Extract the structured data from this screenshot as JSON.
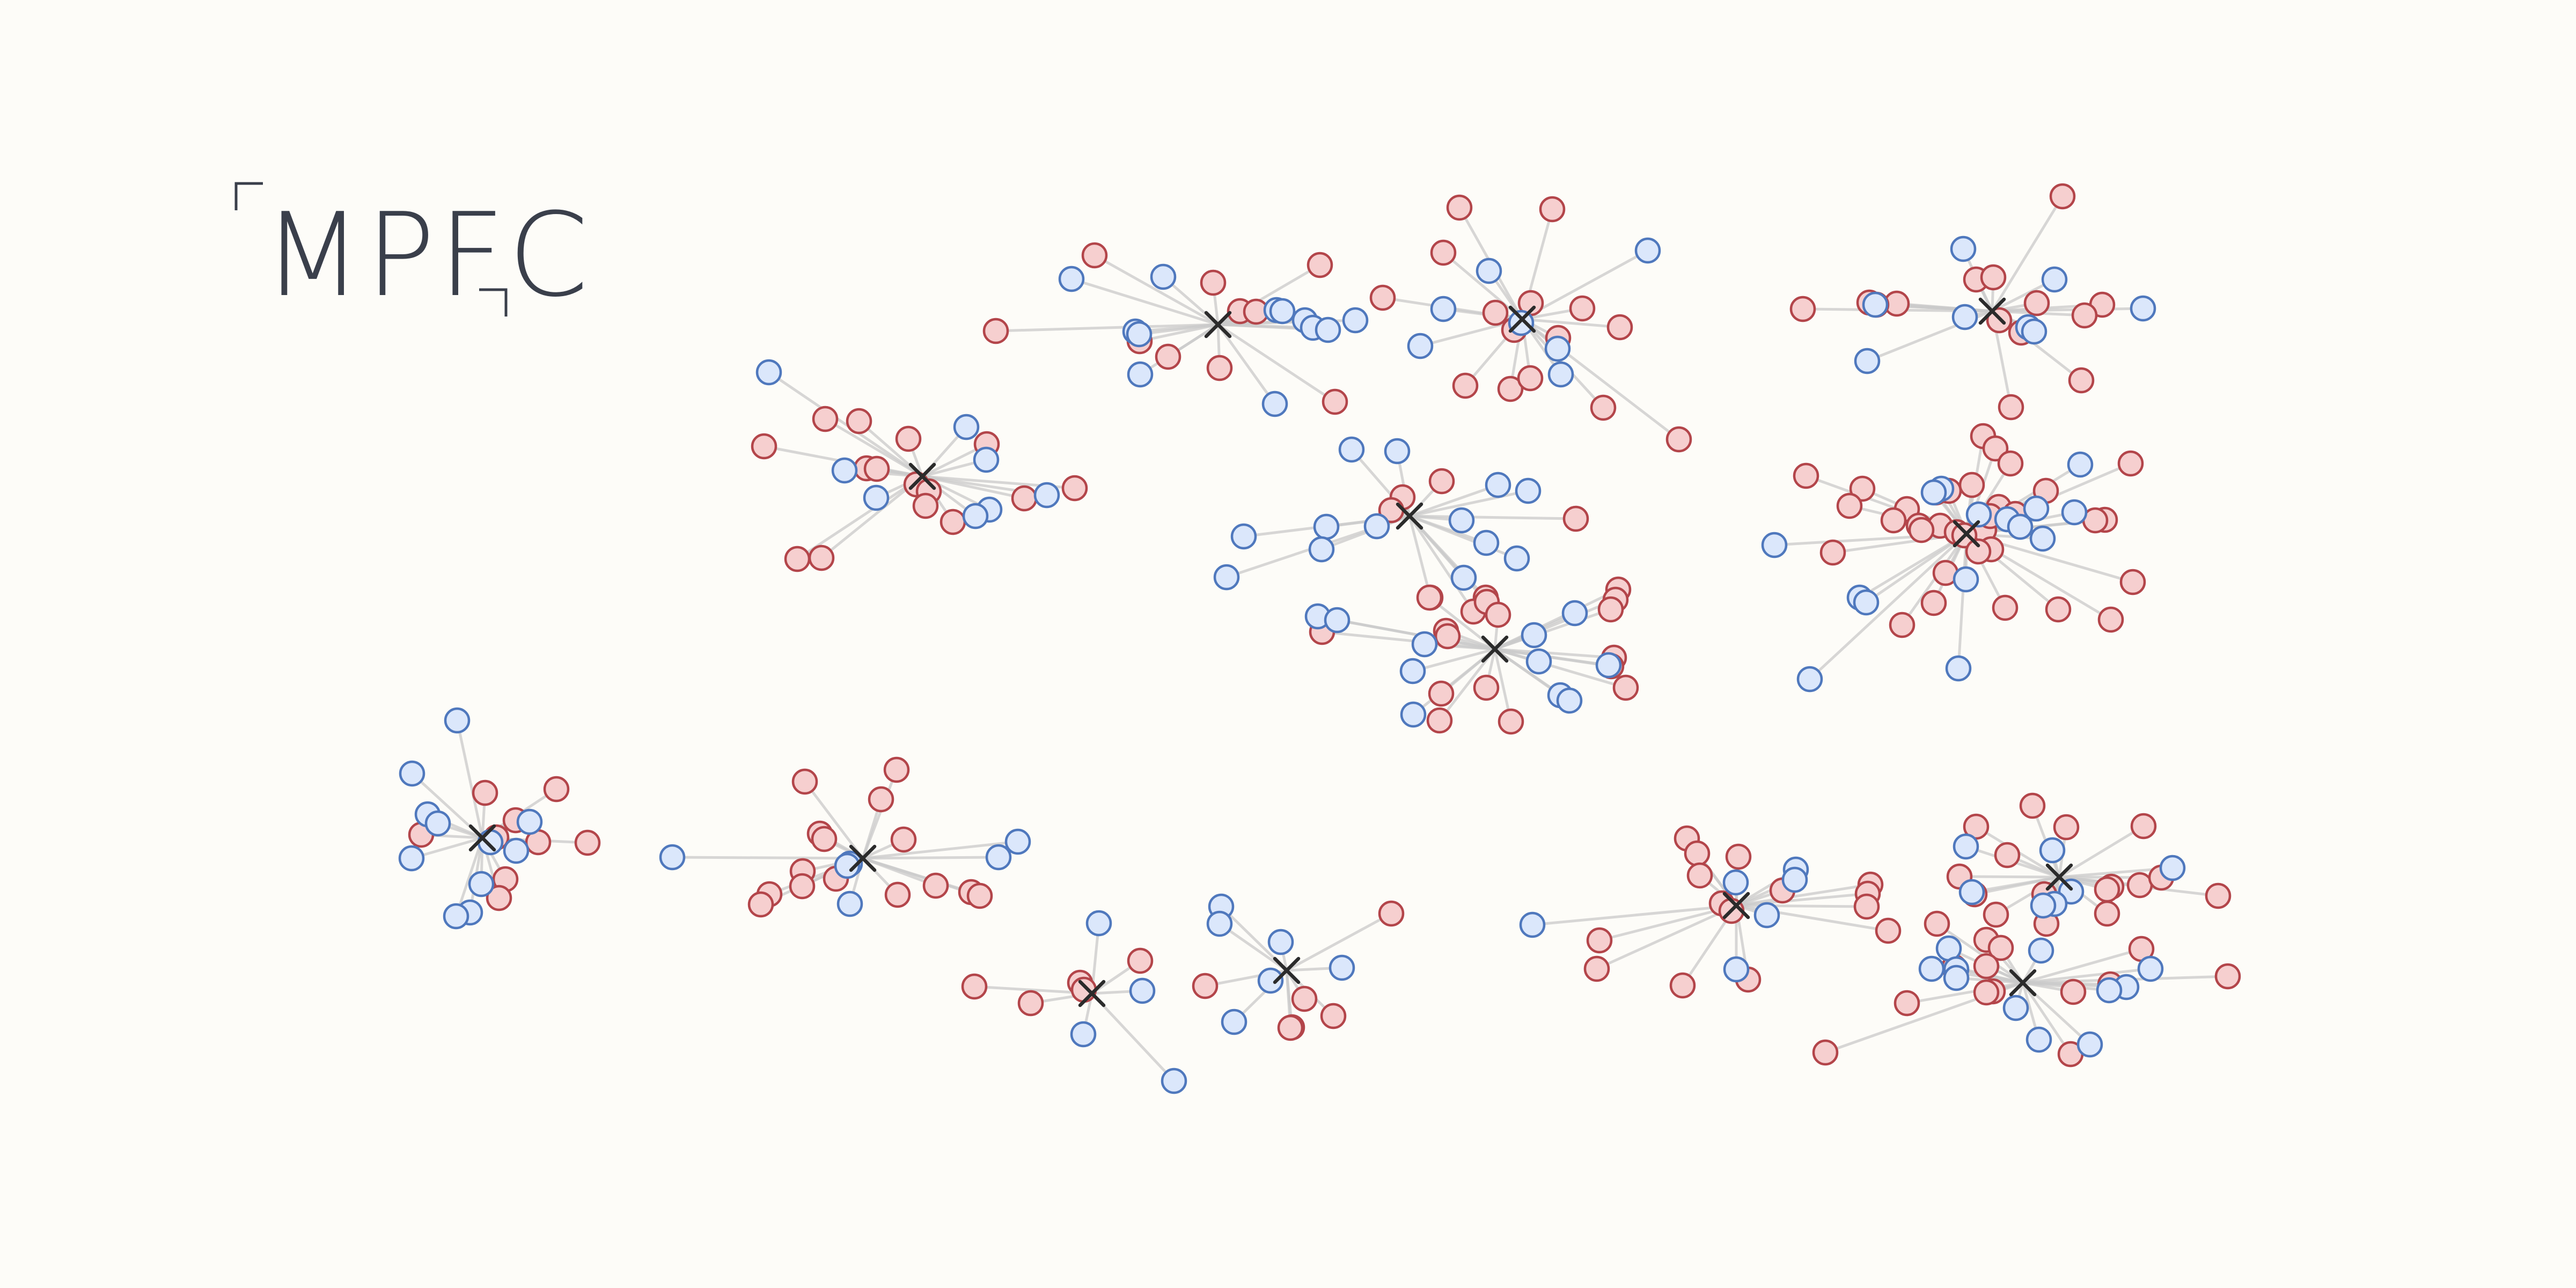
{
  "label": "MPFC",
  "colors": {
    "background": "#fdfcf8",
    "label": "#3a3f4b",
    "edge": "#c9c9c9",
    "node_red_fill": "#f6cfcf",
    "node_red_stroke": "#b3454a",
    "node_blue_fill": "#dbe7fb",
    "node_blue_stroke": "#4f78bd",
    "centroid": "#2b2b2b"
  },
  "clusters": [
    {
      "center": [
        1719,
        888
      ],
      "red": [
        [
          1538,
          781
        ],
        [
          1601,
          785
        ],
        [
          1693,
          818
        ],
        [
          1424,
          832
        ],
        [
          1839,
          828
        ],
        [
          1615,
          873
        ],
        [
          1634,
          874
        ],
        [
          1708,
          903
        ],
        [
          1909,
          929
        ],
        [
          1731,
          916
        ],
        [
          1725,
          943
        ],
        [
          2003,
          910
        ],
        [
          1776,
          973
        ],
        [
          1486,
          1042
        ],
        [
          1531,
          1040
        ]
      ],
      "blue": [
        [
          1433,
          694
        ],
        [
          1801,
          796
        ],
        [
          1838,
          857
        ],
        [
          1574,
          877
        ],
        [
          1633,
          928
        ],
        [
          1951,
          923
        ],
        [
          1844,
          950
        ],
        [
          1818,
          962
        ]
      ]
    },
    {
      "center": [
        2270,
        605
      ],
      "red": [
        [
          2040,
          476
        ],
        [
          2261,
          527
        ],
        [
          2460,
          494
        ],
        [
          2311,
          580
        ],
        [
          2341,
          581
        ],
        [
          1856,
          617
        ],
        [
          2177,
          665
        ],
        [
          2124,
          636
        ],
        [
          2273,
          686
        ],
        [
          2488,
          749
        ]
      ],
      "blue": [
        [
          2168,
          516
        ],
        [
          1997,
          520
        ],
        [
          2379,
          578
        ],
        [
          2390,
          580
        ],
        [
          2432,
          597
        ],
        [
          2526,
          597
        ],
        [
          2116,
          618
        ],
        [
          2123,
          623
        ],
        [
          2447,
          611
        ],
        [
          2475,
          615
        ],
        [
          2125,
          698
        ],
        [
          2376,
          753
        ]
      ]
    },
    {
      "center": [
        2837,
        595
      ],
      "red": [
        [
          2720,
          387
        ],
        [
          2893,
          390
        ],
        [
          2690,
          471
        ],
        [
          2577,
          555
        ],
        [
          2853,
          565
        ],
        [
          2787,
          583
        ],
        [
          2949,
          575
        ],
        [
          3019,
          610
        ],
        [
          2822,
          615
        ],
        [
          2904,
          630
        ],
        [
          3129,
          819
        ],
        [
          2731,
          719
        ],
        [
          2815,
          725
        ],
        [
          2852,
          705
        ],
        [
          2988,
          760
        ]
      ],
      "blue": [
        [
          2775,
          505
        ],
        [
          3071,
          467
        ],
        [
          2690,
          576
        ],
        [
          2835,
          602
        ],
        [
          2647,
          645
        ],
        [
          2903,
          650
        ],
        [
          2909,
          698
        ]
      ]
    },
    {
      "center": [
        3713,
        580
      ],
      "red": [
        [
          3844,
          366
        ],
        [
          3683,
          521
        ],
        [
          3715,
          517
        ],
        [
          3535,
          566
        ],
        [
          3360,
          576
        ],
        [
          3484,
          564
        ],
        [
          3497,
          568
        ],
        [
          3796,
          565
        ],
        [
          3918,
          568
        ],
        [
          3885,
          588
        ],
        [
          3726,
          597
        ],
        [
          3767,
          620
        ],
        [
          3879,
          709
        ],
        [
          3748,
          759
        ]
      ],
      "blue": [
        [
          3659,
          464
        ],
        [
          3829,
          521
        ],
        [
          3495,
          568
        ],
        [
          3662,
          591
        ],
        [
          3994,
          575
        ],
        [
          3780,
          610
        ],
        [
          3791,
          618
        ],
        [
          3480,
          673
        ]
      ]
    },
    {
      "center": [
        2627,
        962
      ],
      "red": [
        [
          2687,
          897
        ],
        [
          2614,
          927
        ],
        [
          2593,
          951
        ],
        [
          2937,
          967
        ],
        [
          2666,
          1114
        ],
        [
          2769,
          1114
        ],
        [
          2746,
          1140
        ],
        [
          2771,
          1122
        ]
      ],
      "blue": [
        [
          2519,
          838
        ],
        [
          2604,
          841
        ],
        [
          2792,
          904
        ],
        [
          2848,
          915
        ],
        [
          2566,
          981
        ],
        [
          2724,
          970
        ],
        [
          2472,
          982
        ],
        [
          2463,
          1024
        ],
        [
          2318,
          1000
        ],
        [
          2770,
          1012
        ],
        [
          2827,
          1041
        ],
        [
          2286,
          1076
        ],
        [
          2728,
          1077
        ]
      ]
    },
    {
      "center": [
        2786,
        1210
      ],
      "red": [
        [
          3016,
          1099
        ],
        [
          3011,
          1118
        ],
        [
          2664,
          1114
        ],
        [
          3002,
          1136
        ],
        [
          2792,
          1146
        ],
        [
          2695,
          1176
        ],
        [
          3008,
          1226
        ],
        [
          3003,
          1242
        ],
        [
          2464,
          1178
        ],
        [
          2698,
          1186
        ],
        [
          3030,
          1282
        ],
        [
          2686,
          1293
        ],
        [
          2770,
          1282
        ],
        [
          2683,
          1343
        ],
        [
          2816,
          1345
        ]
      ],
      "blue": [
        [
          2456,
          1149
        ],
        [
          2492,
          1156
        ],
        [
          2935,
          1143
        ],
        [
          2859,
          1184
        ],
        [
          2655,
          1201
        ],
        [
          2868,
          1233
        ],
        [
          2633,
          1251
        ],
        [
          2998,
          1240
        ],
        [
          2908,
          1296
        ],
        [
          2634,
          1332
        ],
        [
          2925,
          1306
        ]
      ]
    },
    {
      "center": [
        3665,
        995
      ],
      "red": [
        [
          3696,
          813
        ],
        [
          3971,
          864
        ],
        [
          3366,
          887
        ],
        [
          3471,
          911
        ],
        [
          3719,
          836
        ],
        [
          3747,
          864
        ],
        [
          3632,
          915
        ],
        [
          3675,
          904
        ],
        [
          3608,
          918
        ],
        [
          3813,
          915
        ],
        [
          3554,
          949
        ],
        [
          3447,
          943
        ],
        [
          3529,
          970
        ],
        [
          3576,
          980
        ],
        [
          3616,
          980
        ],
        [
          3647,
          992
        ],
        [
          3698,
          988
        ],
        [
          3661,
          998
        ],
        [
          3581,
          988
        ],
        [
          3923,
          969
        ],
        [
          3726,
          952
        ],
        [
          3905,
          970
        ],
        [
          3416,
          1030
        ],
        [
          3711,
          1024
        ],
        [
          3687,
          1028
        ],
        [
          3626,
          1068
        ],
        [
          3604,
          1124
        ],
        [
          3737,
          1133
        ],
        [
          3836,
          1136
        ],
        [
          3975,
          1085
        ],
        [
          3934,
          1155
        ],
        [
          3545,
          1165
        ],
        [
          3725,
          945
        ],
        [
          3756,
          958
        ],
        [
          3709,
          962
        ]
      ],
      "blue": [
        [
          3877,
          866
        ],
        [
          3618,
          911
        ],
        [
          3604,
          918
        ],
        [
          3688,
          959
        ],
        [
          3741,
          968
        ],
        [
          3795,
          948
        ],
        [
          3866,
          955
        ],
        [
          3765,
          982
        ],
        [
          3807,
          1004
        ],
        [
          3307,
          1016
        ],
        [
          3664,
          1080
        ],
        [
          3466,
          1114
        ],
        [
          3478,
          1123
        ],
        [
          3650,
          1246
        ],
        [
          3373,
          1266
        ]
      ]
    },
    {
      "center": [
        899,
        1562
      ],
      "red": [
        [
          904,
          1478
        ],
        [
          1037,
          1471
        ],
        [
          961,
          1529
        ],
        [
          785,
          1556
        ],
        [
          925,
          1561
        ],
        [
          1003,
          1570
        ],
        [
          1095,
          1571
        ],
        [
          942,
          1639
        ],
        [
          930,
          1674
        ]
      ],
      "blue": [
        [
          852,
          1343
        ],
        [
          768,
          1442
        ],
        [
          797,
          1518
        ],
        [
          816,
          1535
        ],
        [
          987,
          1532
        ],
        [
          914,
          1570
        ],
        [
          962,
          1586
        ],
        [
          767,
          1600
        ],
        [
          897,
          1648
        ],
        [
          876,
          1701
        ],
        [
          850,
          1708
        ]
      ]
    },
    {
      "center": [
        1608,
        1600
      ],
      "red": [
        [
          1500,
          1457
        ],
        [
          1671,
          1435
        ],
        [
          1642,
          1490
        ],
        [
          1528,
          1554
        ],
        [
          1536,
          1564
        ],
        [
          1684,
          1565
        ],
        [
          1496,
          1624
        ],
        [
          1558,
          1638
        ],
        [
          1434,
          1667
        ],
        [
          1418,
          1686
        ],
        [
          1495,
          1652
        ],
        [
          1673,
          1668
        ],
        [
          1744,
          1651
        ],
        [
          1810,
          1663
        ],
        [
          1826,
          1670
        ]
      ],
      "blue": [
        [
          1897,
          1569
        ],
        [
          1861,
          1598
        ],
        [
          1584,
          1610
        ],
        [
          1579,
          1614
        ],
        [
          1253,
          1598
        ],
        [
          1584,
          1685
        ]
      ]
    },
    {
      "center": [
        2035,
        1852
      ],
      "red": [
        [
          2125,
          1791
        ],
        [
          2013,
          1832
        ],
        [
          2020,
          1845
        ],
        [
          1816,
          1839
        ],
        [
          1921,
          1870
        ]
      ],
      "blue": [
        [
          2048,
          1721
        ],
        [
          2129,
          1847
        ],
        [
          2019,
          1928
        ],
        [
          2188,
          2015
        ]
      ]
    },
    {
      "center": [
        2398,
        1809
      ],
      "red": [
        [
          2593,
          1703
        ],
        [
          2246,
          1838
        ],
        [
          2431,
          1862
        ],
        [
          2408,
          1915
        ],
        [
          2485,
          1894
        ],
        [
          2405,
          1916
        ]
      ],
      "blue": [
        [
          2276,
          1690
        ],
        [
          2273,
          1722
        ],
        [
          2387,
          1756
        ],
        [
          2501,
          1804
        ],
        [
          2368,
          1828
        ],
        [
          2300,
          1905
        ]
      ]
    },
    {
      "center": [
        3236,
        1688
      ],
      "red": [
        [
          3144,
          1563
        ],
        [
          3240,
          1597
        ],
        [
          3163,
          1591
        ],
        [
          3168,
          1632
        ],
        [
          3322,
          1660
        ],
        [
          3486,
          1649
        ],
        [
          3481,
          1666
        ],
        [
          3209,
          1684
        ],
        [
          3227,
          1698
        ],
        [
          3479,
          1690
        ],
        [
          3519,
          1735
        ],
        [
          2981,
          1753
        ],
        [
          2976,
          1806
        ],
        [
          3258,
          1826
        ],
        [
          3136,
          1837
        ]
      ],
      "blue": [
        [
          3347,
          1621
        ],
        [
          3345,
          1640
        ],
        [
          3235,
          1645
        ],
        [
          3293,
          1706
        ],
        [
          2856,
          1724
        ],
        [
          3236,
          1807
        ]
      ]
    },
    {
      "center": [
        3838,
        1635
      ],
      "red": [
        [
          3788,
          1502
        ],
        [
          3683,
          1541
        ],
        [
          3851,
          1542
        ],
        [
          3995,
          1540
        ],
        [
          3741,
          1594
        ],
        [
          3988,
          1650
        ],
        [
          3935,
          1653
        ],
        [
          4028,
          1636
        ],
        [
          4134,
          1670
        ],
        [
          3927,
          1658
        ],
        [
          3652,
          1634
        ],
        [
          3680,
          1667
        ],
        [
          3810,
          1667
        ],
        [
          3720,
          1705
        ],
        [
          3927,
          1703
        ],
        [
          3814,
          1722
        ]
      ],
      "blue": [
        [
          3664,
          1578
        ],
        [
          3825,
          1585
        ],
        [
          4049,
          1618
        ],
        [
          3860,
          1662
        ],
        [
          3675,
          1663
        ],
        [
          3829,
          1685
        ],
        [
          3808,
          1688
        ]
      ]
    },
    {
      "center": [
        3770,
        1832
      ],
      "red": [
        [
          3610,
          1722
        ],
        [
          3702,
          1752
        ],
        [
          3729,
          1767
        ],
        [
          3991,
          1769
        ],
        [
          3642,
          1803
        ],
        [
          3702,
          1801
        ],
        [
          3714,
          1848
        ],
        [
          3554,
          1870
        ],
        [
          4152,
          1820
        ],
        [
          3933,
          1835
        ],
        [
          3864,
          1849
        ],
        [
          3402,
          1962
        ],
        [
          3859,
          1965
        ],
        [
          3702,
          1850
        ]
      ],
      "blue": [
        [
          3632,
          1768
        ],
        [
          3804,
          1772
        ],
        [
          3600,
          1806
        ],
        [
          3646,
          1807
        ],
        [
          4008,
          1806
        ],
        [
          3646,
          1823
        ],
        [
          3963,
          1840
        ],
        [
          3931,
          1846
        ],
        [
          3757,
          1879
        ],
        [
          3800,
          1938
        ],
        [
          3895,
          1947
        ]
      ]
    }
  ]
}
